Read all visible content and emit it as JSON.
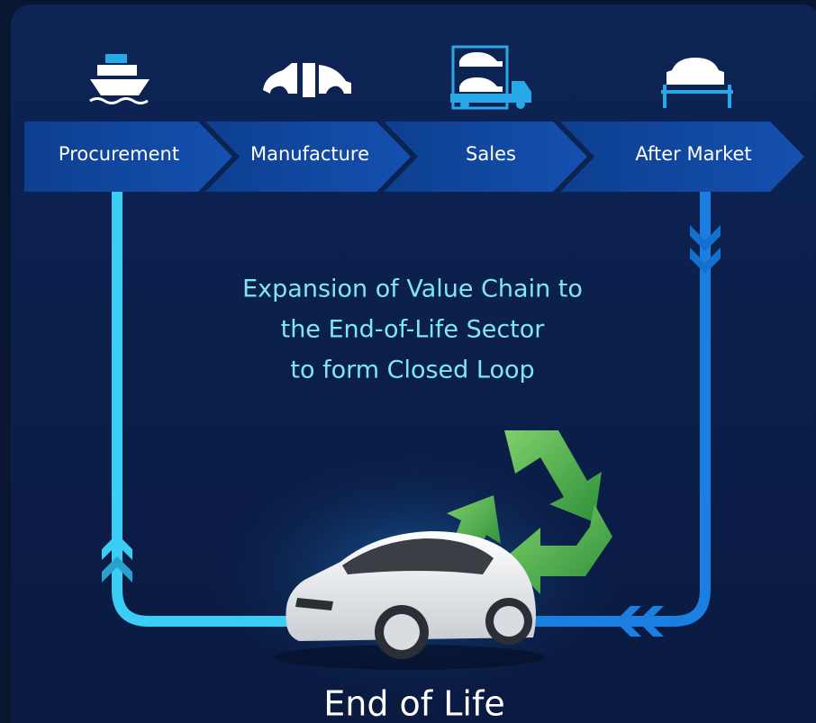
{
  "steps": [
    {
      "label": "Procurement"
    },
    {
      "label": "Manufacture"
    },
    {
      "label": "Sales"
    },
    {
      "label": "After Market"
    }
  ],
  "headline": [
    "Expansion of Value Chain to",
    "the End-of-Life Sector",
    "to form Closed Loop"
  ],
  "end_label": "End of Life"
}
